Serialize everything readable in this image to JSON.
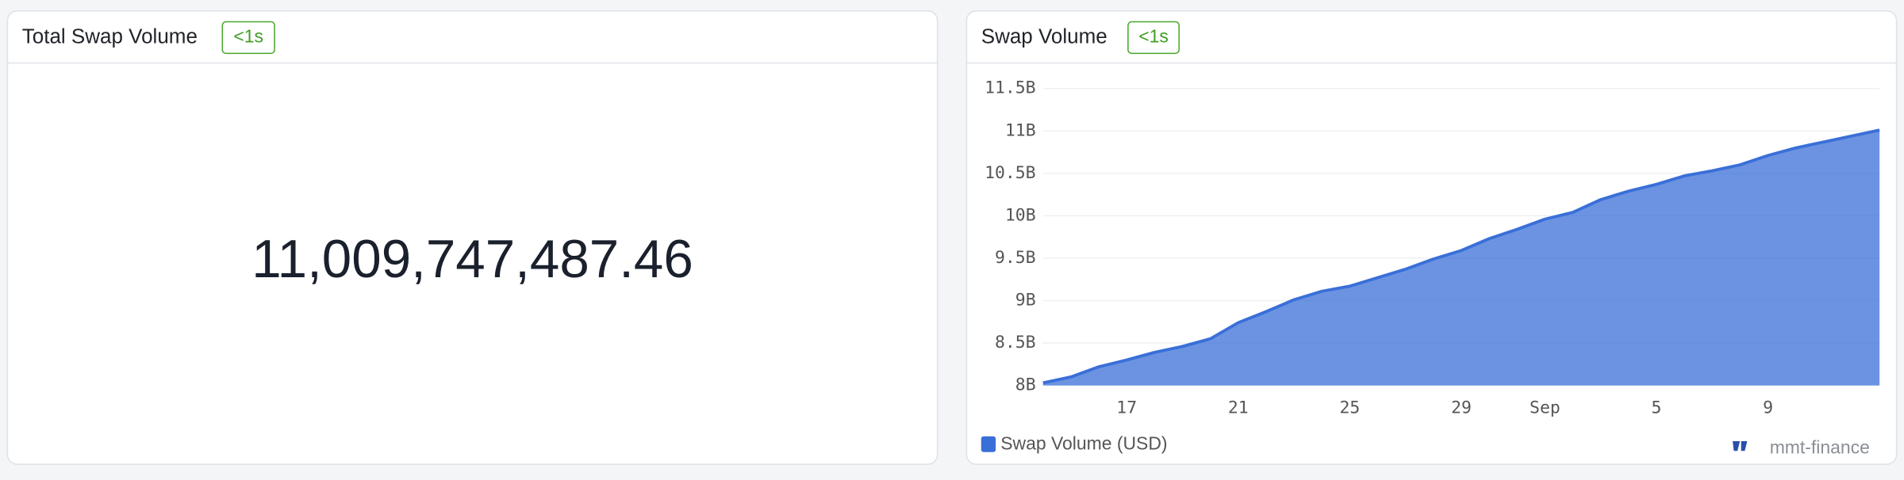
{
  "panels": [
    {
      "title": "Total Swap Volume",
      "badge": "<1s",
      "value": "11,009,747,487.46"
    }
  ],
  "chart_data": {
    "type": "area",
    "title": "Swap Volume",
    "badge": "<1s",
    "categories": [
      null,
      null,
      null,
      "17",
      null,
      null,
      null,
      "21",
      null,
      null,
      null,
      "25",
      null,
      null,
      null,
      "29",
      null,
      null,
      "Sep",
      null,
      null,
      null,
      "5",
      null,
      null,
      null,
      "9",
      null,
      null,
      null,
      null
    ],
    "series": [
      {
        "name": "Swap Volume (USD)",
        "color": "#3a6fd8",
        "values": [
          8.03,
          8.1,
          8.22,
          8.3,
          8.39,
          8.46,
          8.55,
          8.74,
          8.87,
          9.01,
          9.11,
          9.17,
          9.27,
          9.37,
          9.49,
          9.59,
          9.73,
          9.84,
          9.96,
          10.04,
          10.19,
          10.29,
          10.37,
          10.47,
          10.53,
          10.6,
          10.71,
          10.8,
          10.87,
          10.94,
          11.01
        ]
      }
    ],
    "ylim": [
      8,
      11.6
    ],
    "yticks": [
      {
        "value": 8,
        "label": "8B"
      },
      {
        "value": 8.5,
        "label": "8.5B"
      },
      {
        "value": 9,
        "label": "9B"
      },
      {
        "value": 9.5,
        "label": "9.5B"
      },
      {
        "value": 10,
        "label": "10B"
      },
      {
        "value": 10.5,
        "label": "10.5B"
      },
      {
        "value": 11,
        "label": "11B"
      },
      {
        "value": 11.5,
        "label": "11.5B"
      }
    ],
    "grid": true,
    "watermark": "mmt-finance"
  }
}
